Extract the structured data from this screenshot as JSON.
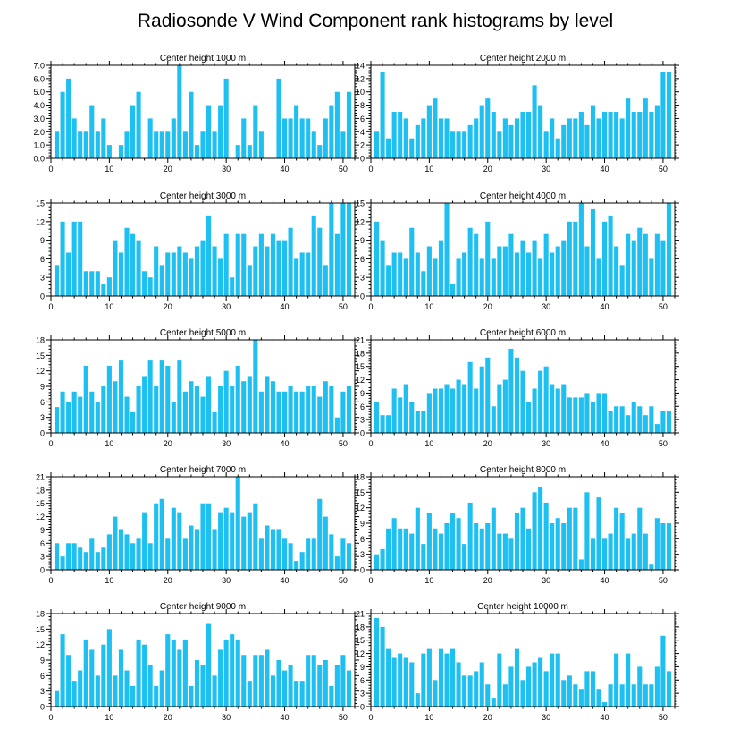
{
  "title": "Radiosonde V Wind Component rank histograms by level",
  "colors": {
    "bar": "#1EC0F2",
    "axis": "#000000",
    "background": "#ffffff"
  },
  "chart_data": [
    {
      "type": "bar",
      "title": "Center height 1000 m",
      "ylim": [
        0,
        7
      ],
      "yticks": [
        "0.0",
        "1.0",
        "2.0",
        "3.0",
        "4.0",
        "5.0",
        "6.0",
        "7.0"
      ],
      "xlim": [
        0,
        52
      ],
      "xticks": [
        "0",
        "10",
        "20",
        "30",
        "40",
        "50"
      ],
      "x": [
        1,
        2,
        3,
        4,
        5,
        6,
        7,
        8,
        9,
        10,
        11,
        12,
        13,
        14,
        15,
        16,
        17,
        18,
        19,
        20,
        21,
        22,
        23,
        24,
        25,
        26,
        27,
        28,
        29,
        30,
        31,
        32,
        33,
        34,
        35,
        36,
        37,
        38,
        39,
        40,
        41,
        42,
        43,
        44,
        45,
        46,
        47,
        48,
        49,
        50,
        51
      ],
      "values": [
        2,
        5,
        6,
        3,
        2,
        2,
        4,
        2,
        3,
        1,
        0,
        1,
        2,
        4,
        5,
        0,
        3,
        2,
        2,
        2,
        3,
        7,
        2,
        5,
        1,
        2,
        4,
        2,
        4,
        6,
        0,
        1,
        3,
        1,
        4,
        2,
        0,
        0,
        6,
        3,
        3,
        4,
        3,
        3,
        2,
        1,
        3,
        4,
        5,
        2,
        5
      ]
    },
    {
      "type": "bar",
      "title": "Center height 2000 m",
      "ylim": [
        0,
        14
      ],
      "yticks": [
        "0",
        "2",
        "4",
        "6",
        "8",
        "10",
        "12",
        "14"
      ],
      "xlim": [
        0,
        52
      ],
      "xticks": [
        "0",
        "10",
        "20",
        "30",
        "40",
        "50"
      ],
      "x": [
        1,
        2,
        3,
        4,
        5,
        6,
        7,
        8,
        9,
        10,
        11,
        12,
        13,
        14,
        15,
        16,
        17,
        18,
        19,
        20,
        21,
        22,
        23,
        24,
        25,
        26,
        27,
        28,
        29,
        30,
        31,
        32,
        33,
        34,
        35,
        36,
        37,
        38,
        39,
        40,
        41,
        42,
        43,
        44,
        45,
        46,
        47,
        48,
        49,
        50,
        51
      ],
      "values": [
        4,
        13,
        3,
        7,
        7,
        6,
        3,
        5,
        6,
        8,
        9,
        6,
        6,
        4,
        4,
        4,
        5,
        6,
        8,
        9,
        7,
        4,
        6,
        5,
        6,
        7,
        7,
        11,
        8,
        4,
        6,
        3,
        5,
        6,
        6,
        7,
        5,
        8,
        6,
        7,
        7,
        7,
        6,
        9,
        7,
        7,
        9,
        7,
        8,
        13,
        13
      ]
    },
    {
      "type": "bar",
      "title": "Center height 3000 m",
      "ylim": [
        0,
        15
      ],
      "yticks": [
        "0",
        "3",
        "6",
        "9",
        "12",
        "15"
      ],
      "xlim": [
        0,
        52
      ],
      "xticks": [
        "0",
        "10",
        "20",
        "30",
        "40",
        "50"
      ],
      "x": [
        1,
        2,
        3,
        4,
        5,
        6,
        7,
        8,
        9,
        10,
        11,
        12,
        13,
        14,
        15,
        16,
        17,
        18,
        19,
        20,
        21,
        22,
        23,
        24,
        25,
        26,
        27,
        28,
        29,
        30,
        31,
        32,
        33,
        34,
        35,
        36,
        37,
        38,
        39,
        40,
        41,
        42,
        43,
        44,
        45,
        46,
        47,
        48,
        49,
        50,
        51
      ],
      "values": [
        5,
        12,
        7,
        12,
        12,
        4,
        4,
        4,
        2,
        3,
        9,
        7,
        11,
        10,
        9,
        4,
        3,
        8,
        5,
        7,
        7,
        8,
        7,
        6,
        8,
        9,
        13,
        8,
        6,
        10,
        3,
        10,
        10,
        5,
        8,
        10,
        8,
        10,
        9,
        9,
        11,
        6,
        7,
        7,
        13,
        11,
        5,
        15,
        10,
        15,
        15
      ]
    },
    {
      "type": "bar",
      "title": "Center height 4000 m",
      "ylim": [
        0,
        15
      ],
      "yticks": [
        "0",
        "3",
        "6",
        "9",
        "12",
        "15"
      ],
      "xlim": [
        0,
        52
      ],
      "xticks": [
        "0",
        "10",
        "20",
        "30",
        "40",
        "50"
      ],
      "x": [
        1,
        2,
        3,
        4,
        5,
        6,
        7,
        8,
        9,
        10,
        11,
        12,
        13,
        14,
        15,
        16,
        17,
        18,
        19,
        20,
        21,
        22,
        23,
        24,
        25,
        26,
        27,
        28,
        29,
        30,
        31,
        32,
        33,
        34,
        35,
        36,
        37,
        38,
        39,
        40,
        41,
        42,
        43,
        44,
        45,
        46,
        47,
        48,
        49,
        50,
        51
      ],
      "values": [
        12,
        9,
        5,
        7,
        7,
        6,
        11,
        7,
        4,
        8,
        6,
        9,
        15,
        2,
        6,
        7,
        11,
        10,
        6,
        12,
        6,
        8,
        8,
        10,
        7,
        9,
        7,
        9,
        6,
        10,
        7,
        8,
        9,
        12,
        12,
        15,
        8,
        14,
        6,
        12,
        13,
        8,
        5,
        10,
        9,
        11,
        10,
        6,
        10,
        9,
        15
      ]
    },
    {
      "type": "bar",
      "title": "Center height 5000 m",
      "ylim": [
        0,
        18
      ],
      "yticks": [
        "0",
        "3",
        "6",
        "9",
        "12",
        "15",
        "18"
      ],
      "xlim": [
        0,
        52
      ],
      "xticks": [
        "0",
        "10",
        "20",
        "30",
        "40",
        "50"
      ],
      "x": [
        1,
        2,
        3,
        4,
        5,
        6,
        7,
        8,
        9,
        10,
        11,
        12,
        13,
        14,
        15,
        16,
        17,
        18,
        19,
        20,
        21,
        22,
        23,
        24,
        25,
        26,
        27,
        28,
        29,
        30,
        31,
        32,
        33,
        34,
        35,
        36,
        37,
        38,
        39,
        40,
        41,
        42,
        43,
        44,
        45,
        46,
        47,
        48,
        49,
        50,
        51
      ],
      "values": [
        5,
        8,
        6,
        8,
        7,
        13,
        8,
        6,
        9,
        13,
        10,
        14,
        7,
        4,
        9,
        11,
        14,
        9,
        14,
        13,
        6,
        14,
        8,
        10,
        9,
        7,
        11,
        4,
        9,
        12,
        9,
        13,
        10,
        11,
        18,
        8,
        11,
        10,
        8,
        8,
        9,
        8,
        8,
        9,
        9,
        7,
        10,
        9,
        3,
        8,
        9
      ]
    },
    {
      "type": "bar",
      "title": "Center height 6000 m",
      "ylim": [
        0,
        21
      ],
      "yticks": [
        "0",
        "3",
        "6",
        "9",
        "12",
        "15",
        "18",
        "21"
      ],
      "xlim": [
        0,
        52
      ],
      "xticks": [
        "0",
        "10",
        "20",
        "30",
        "40",
        "50"
      ],
      "x": [
        1,
        2,
        3,
        4,
        5,
        6,
        7,
        8,
        9,
        10,
        11,
        12,
        13,
        14,
        15,
        16,
        17,
        18,
        19,
        20,
        21,
        22,
        23,
        24,
        25,
        26,
        27,
        28,
        29,
        30,
        31,
        32,
        33,
        34,
        35,
        36,
        37,
        38,
        39,
        40,
        41,
        42,
        43,
        44,
        45,
        46,
        47,
        48,
        49,
        50,
        51
      ],
      "values": [
        7,
        4,
        4,
        10,
        8,
        11,
        7,
        5,
        5,
        9,
        10,
        10,
        11,
        10,
        12,
        11,
        16,
        10,
        15,
        17,
        6,
        11,
        12,
        19,
        17,
        14,
        7,
        10,
        14,
        15,
        11,
        10,
        11,
        8,
        8,
        8,
        9,
        7,
        9,
        9,
        5,
        6,
        6,
        4,
        7,
        6,
        4,
        6,
        2,
        5,
        5
      ]
    },
    {
      "type": "bar",
      "title": "Center height 7000 m",
      "ylim": [
        0,
        21
      ],
      "yticks": [
        "0",
        "3",
        "6",
        "9",
        "12",
        "15",
        "18",
        "21"
      ],
      "xlim": [
        0,
        52
      ],
      "xticks": [
        "0",
        "10",
        "20",
        "30",
        "40",
        "50"
      ],
      "x": [
        1,
        2,
        3,
        4,
        5,
        6,
        7,
        8,
        9,
        10,
        11,
        12,
        13,
        14,
        15,
        16,
        17,
        18,
        19,
        20,
        21,
        22,
        23,
        24,
        25,
        26,
        27,
        28,
        29,
        30,
        31,
        32,
        33,
        34,
        35,
        36,
        37,
        38,
        39,
        40,
        41,
        42,
        43,
        44,
        45,
        46,
        47,
        48,
        49,
        50,
        51
      ],
      "values": [
        6,
        3,
        6,
        6,
        5,
        4,
        7,
        4,
        5,
        8,
        12,
        9,
        8,
        6,
        7,
        13,
        6,
        15,
        16,
        7,
        14,
        13,
        7,
        10,
        9,
        15,
        15,
        9,
        13,
        14,
        13,
        21,
        12,
        13,
        15,
        7,
        10,
        9,
        9,
        7,
        6,
        2,
        4,
        7,
        7,
        16,
        12,
        8,
        3,
        7,
        6
      ]
    },
    {
      "type": "bar",
      "title": "Center height 8000 m",
      "ylim": [
        0,
        18
      ],
      "yticks": [
        "0",
        "3",
        "6",
        "9",
        "12",
        "15",
        "18"
      ],
      "xlim": [
        0,
        52
      ],
      "xticks": [
        "0",
        "10",
        "20",
        "30",
        "40",
        "50"
      ],
      "x": [
        1,
        2,
        3,
        4,
        5,
        6,
        7,
        8,
        9,
        10,
        11,
        12,
        13,
        14,
        15,
        16,
        17,
        18,
        19,
        20,
        21,
        22,
        23,
        24,
        25,
        26,
        27,
        28,
        29,
        30,
        31,
        32,
        33,
        34,
        35,
        36,
        37,
        38,
        39,
        40,
        41,
        42,
        43,
        44,
        45,
        46,
        47,
        48,
        49,
        50,
        51
      ],
      "values": [
        3,
        4,
        8,
        10,
        8,
        8,
        7,
        12,
        5,
        11,
        8,
        7,
        9,
        11,
        10,
        5,
        13,
        9,
        8,
        9,
        12,
        7,
        7,
        6,
        11,
        12,
        8,
        15,
        16,
        13,
        9,
        10,
        9,
        12,
        12,
        2,
        15,
        6,
        14,
        6,
        7,
        12,
        11,
        6,
        7,
        12,
        7,
        1,
        10,
        9,
        9
      ]
    },
    {
      "type": "bar",
      "title": "Center height 9000 m",
      "ylim": [
        0,
        18
      ],
      "yticks": [
        "0",
        "3",
        "6",
        "9",
        "12",
        "15",
        "18"
      ],
      "xlim": [
        0,
        52
      ],
      "xticks": [
        "0",
        "10",
        "20",
        "30",
        "40",
        "50"
      ],
      "x": [
        1,
        2,
        3,
        4,
        5,
        6,
        7,
        8,
        9,
        10,
        11,
        12,
        13,
        14,
        15,
        16,
        17,
        18,
        19,
        20,
        21,
        22,
        23,
        24,
        25,
        26,
        27,
        28,
        29,
        30,
        31,
        32,
        33,
        34,
        35,
        36,
        37,
        38,
        39,
        40,
        41,
        42,
        43,
        44,
        45,
        46,
        47,
        48,
        49,
        50,
        51
      ],
      "values": [
        3,
        14,
        10,
        5,
        7,
        13,
        11,
        6,
        12,
        15,
        6,
        11,
        7,
        4,
        13,
        12,
        8,
        4,
        7,
        14,
        13,
        11,
        13,
        4,
        9,
        8,
        16,
        6,
        11,
        13,
        14,
        13,
        10,
        5,
        10,
        10,
        11,
        6,
        9,
        7,
        8,
        5,
        5,
        10,
        10,
        8,
        9,
        4,
        8,
        10,
        7
      ]
    },
    {
      "type": "bar",
      "title": "Center height 10000 m",
      "ylim": [
        0,
        21
      ],
      "yticks": [
        "0",
        "3",
        "6",
        "9",
        "12",
        "15",
        "18",
        "21"
      ],
      "xlim": [
        0,
        52
      ],
      "xticks": [
        "0",
        "10",
        "20",
        "30",
        "40",
        "50"
      ],
      "x": [
        1,
        2,
        3,
        4,
        5,
        6,
        7,
        8,
        9,
        10,
        11,
        12,
        13,
        14,
        15,
        16,
        17,
        18,
        19,
        20,
        21,
        22,
        23,
        24,
        25,
        26,
        27,
        28,
        29,
        30,
        31,
        32,
        33,
        34,
        35,
        36,
        37,
        38,
        39,
        40,
        41,
        42,
        43,
        44,
        45,
        46,
        47,
        48,
        49,
        50,
        51
      ],
      "values": [
        20,
        18,
        13,
        11,
        12,
        11,
        10,
        3,
        12,
        13,
        6,
        13,
        12,
        13,
        10,
        7,
        7,
        8,
        10,
        5,
        2,
        12,
        5,
        9,
        13,
        6,
        9,
        10,
        11,
        8,
        12,
        12,
        6,
        7,
        5,
        4,
        8,
        8,
        4,
        1,
        5,
        12,
        5,
        12,
        5,
        9,
        5,
        5,
        9,
        16,
        8
      ]
    }
  ]
}
